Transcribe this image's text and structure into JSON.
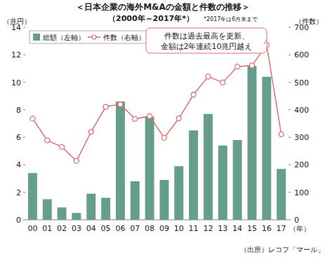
{
  "chart_data": {
    "type": "bar",
    "title": "＜日本企業の海外M&Aの金額と件数の推移＞",
    "subtitle": "（2000年～2017年*）",
    "note": "*2017年は6月末まで",
    "ylabel": "（兆円）",
    "y2label": "（件数）",
    "xlabel": "（年）",
    "source": "（出所）レコフ「マール」",
    "annotation": [
      "件数は過去最高を更新、",
      "金額は2年連続10兆円越え"
    ],
    "categories": [
      "00",
      "01",
      "02",
      "03",
      "04",
      "05",
      "06",
      "07",
      "08",
      "09",
      "10",
      "11",
      "12",
      "13",
      "14",
      "15",
      "16",
      "17"
    ],
    "series": [
      {
        "name": "総額（左軸）",
        "type": "bar",
        "color": "#669e8c",
        "values": [
          3.4,
          1.5,
          0.9,
          0.5,
          1.9,
          1.6,
          8.6,
          2.8,
          7.5,
          2.9,
          3.9,
          6.5,
          7.7,
          5.4,
          5.8,
          11.2,
          10.4,
          3.7
        ]
      },
      {
        "name": "件数（右軸）",
        "type": "line",
        "axis": "y2",
        "color": "#e07070",
        "marker": "circle",
        "values": [
          368,
          289,
          265,
          214,
          320,
          411,
          420,
          367,
          377,
          298,
          369,
          455,
          521,
          499,
          557,
          561,
          636,
          311
        ]
      }
    ],
    "ylim": [
      0,
      14
    ],
    "yticks": [
      0,
      2,
      4,
      6,
      8,
      10,
      12,
      14
    ],
    "y2lim": [
      0,
      700
    ],
    "y2ticks": [
      0,
      100,
      200,
      300,
      400,
      500,
      600,
      700
    ],
    "grid": false,
    "legend": "upper left"
  }
}
